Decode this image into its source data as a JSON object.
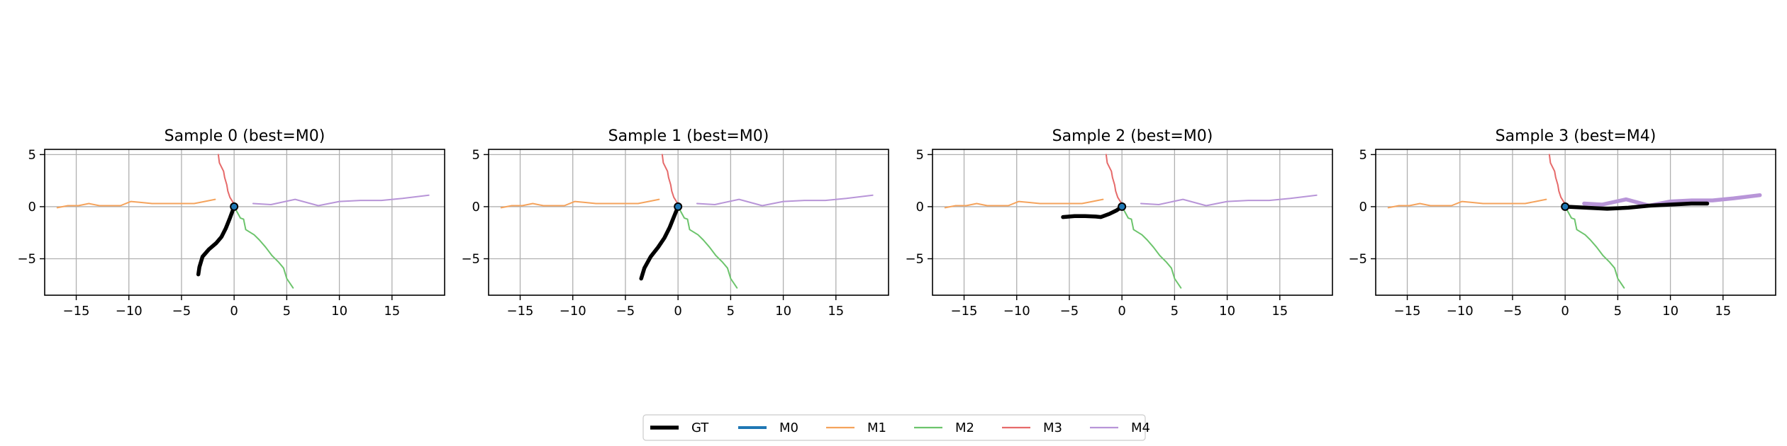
{
  "colors": {
    "GT": "#000000",
    "M0": "#1f77b4",
    "M1": "#f5a35c",
    "M2": "#6cc46c",
    "M3": "#e66a6a",
    "M4": "#b895d8",
    "grid": "#b0b0b0"
  },
  "legend": {
    "placement": "bottom-center",
    "entries": [
      "GT",
      "M0",
      "M1",
      "M2",
      "M3",
      "M4"
    ]
  },
  "chart_data": [
    {
      "type": "line",
      "title": "Sample 0 (best=M0)",
      "xlim": [
        -18,
        20
      ],
      "ylim": [
        -8.5,
        5.5
      ],
      "xticks": [
        -15,
        -10,
        -5,
        0,
        5,
        10,
        15
      ],
      "yticks": [
        5,
        0,
        -5
      ],
      "grid": true,
      "origin_marker": [
        0,
        0
      ],
      "series": [
        {
          "name": "GT",
          "points": [
            [
              -3.4,
              -6.5
            ],
            [
              -3.3,
              -5.8
            ],
            [
              -3.0,
              -4.8
            ],
            [
              -2.4,
              -4.1
            ],
            [
              -1.7,
              -3.5
            ],
            [
              -1.2,
              -2.9
            ],
            [
              -0.8,
              -2.1
            ],
            [
              -0.4,
              -1.1
            ],
            [
              0,
              0
            ]
          ]
        },
        {
          "name": "M0",
          "points": [
            [
              0,
              0
            ],
            [
              0.1,
              0.05
            ]
          ]
        },
        {
          "name": "M1",
          "points": [
            [
              -16.8,
              -0.1
            ],
            [
              -15.8,
              0.1
            ],
            [
              -14.8,
              0.1
            ],
            [
              -13.8,
              0.3
            ],
            [
              -12.8,
              0.1
            ],
            [
              -11.8,
              0.1
            ],
            [
              -10.8,
              0.1
            ],
            [
              -9.8,
              0.5
            ],
            [
              -8.8,
              0.4
            ],
            [
              -7.8,
              0.3
            ],
            [
              -6.8,
              0.3
            ],
            [
              -5.8,
              0.3
            ],
            [
              -4.8,
              0.3
            ],
            [
              -3.8,
              0.3
            ],
            [
              -2.8,
              0.5
            ],
            [
              -1.8,
              0.7
            ]
          ]
        },
        {
          "name": "M2",
          "points": [
            [
              0,
              0
            ],
            [
              0.6,
              -1.1
            ],
            [
              0.9,
              -1.2
            ],
            [
              1.1,
              -2.2
            ],
            [
              1.9,
              -2.7
            ],
            [
              2.4,
              -3.2
            ],
            [
              3.0,
              -3.9
            ],
            [
              3.6,
              -4.7
            ],
            [
              4.2,
              -5.3
            ],
            [
              4.7,
              -5.9
            ],
            [
              5.0,
              -6.9
            ],
            [
              5.6,
              -7.8
            ]
          ]
        },
        {
          "name": "M3",
          "points": [
            [
              -1.5,
              5.0
            ],
            [
              -1.4,
              4.2
            ],
            [
              -1.0,
              3.4
            ],
            [
              -0.9,
              2.8
            ],
            [
              -0.7,
              2.1
            ],
            [
              -0.6,
              1.5
            ],
            [
              -0.4,
              0.9
            ],
            [
              -0.1,
              0.4
            ],
            [
              0,
              0
            ]
          ]
        },
        {
          "name": "M4",
          "points": [
            [
              1.8,
              0.3
            ],
            [
              3.5,
              0.2
            ],
            [
              5.8,
              0.7
            ],
            [
              8.0,
              0.1
            ],
            [
              10.0,
              0.5
            ],
            [
              12.0,
              0.6
            ],
            [
              14.0,
              0.6
            ],
            [
              16.0,
              0.8
            ],
            [
              18.5,
              1.1
            ]
          ]
        }
      ]
    },
    {
      "type": "line",
      "title": "Sample 1 (best=M0)",
      "xlim": [
        -18,
        20
      ],
      "ylim": [
        -8.5,
        5.5
      ],
      "xticks": [
        -15,
        -10,
        -5,
        0,
        5,
        10,
        15
      ],
      "yticks": [
        5,
        0,
        -5
      ],
      "grid": true,
      "origin_marker": [
        0,
        0
      ],
      "series": [
        {
          "name": "GT",
          "points": [
            [
              -3.5,
              -6.9
            ],
            [
              -3.2,
              -5.9
            ],
            [
              -2.6,
              -4.8
            ],
            [
              -1.9,
              -3.9
            ],
            [
              -1.3,
              -3.0
            ],
            [
              -0.8,
              -2.0
            ],
            [
              -0.4,
              -1.0
            ],
            [
              0,
              0
            ]
          ]
        },
        {
          "name": "M0",
          "points": [
            [
              0,
              0
            ],
            [
              0.1,
              0.05
            ]
          ]
        },
        {
          "name": "M1",
          "points": [
            [
              -16.8,
              -0.1
            ],
            [
              -15.8,
              0.1
            ],
            [
              -14.8,
              0.1
            ],
            [
              -13.8,
              0.3
            ],
            [
              -12.8,
              0.1
            ],
            [
              -11.8,
              0.1
            ],
            [
              -10.8,
              0.1
            ],
            [
              -9.8,
              0.5
            ],
            [
              -8.8,
              0.4
            ],
            [
              -7.8,
              0.3
            ],
            [
              -6.8,
              0.3
            ],
            [
              -5.8,
              0.3
            ],
            [
              -4.8,
              0.3
            ],
            [
              -3.8,
              0.3
            ],
            [
              -2.8,
              0.5
            ],
            [
              -1.8,
              0.7
            ]
          ]
        },
        {
          "name": "M2",
          "points": [
            [
              0,
              0
            ],
            [
              0.6,
              -1.1
            ],
            [
              0.9,
              -1.2
            ],
            [
              1.1,
              -2.2
            ],
            [
              1.9,
              -2.7
            ],
            [
              2.4,
              -3.2
            ],
            [
              3.0,
              -3.9
            ],
            [
              3.6,
              -4.7
            ],
            [
              4.2,
              -5.3
            ],
            [
              4.7,
              -5.9
            ],
            [
              5.0,
              -6.9
            ],
            [
              5.6,
              -7.8
            ]
          ]
        },
        {
          "name": "M3",
          "points": [
            [
              -1.5,
              5.0
            ],
            [
              -1.4,
              4.2
            ],
            [
              -1.0,
              3.4
            ],
            [
              -0.9,
              2.8
            ],
            [
              -0.7,
              2.1
            ],
            [
              -0.6,
              1.5
            ],
            [
              -0.4,
              0.9
            ],
            [
              -0.1,
              0.4
            ],
            [
              0,
              0
            ]
          ]
        },
        {
          "name": "M4",
          "points": [
            [
              1.8,
              0.3
            ],
            [
              3.5,
              0.2
            ],
            [
              5.8,
              0.7
            ],
            [
              8.0,
              0.1
            ],
            [
              10.0,
              0.5
            ],
            [
              12.0,
              0.6
            ],
            [
              14.0,
              0.6
            ],
            [
              16.0,
              0.8
            ],
            [
              18.5,
              1.1
            ]
          ]
        }
      ]
    },
    {
      "type": "line",
      "title": "Sample 2 (best=M0)",
      "xlim": [
        -18,
        20
      ],
      "ylim": [
        -8.5,
        5.5
      ],
      "xticks": [
        -15,
        -10,
        -5,
        0,
        5,
        10,
        15
      ],
      "yticks": [
        5,
        0,
        -5
      ],
      "grid": true,
      "origin_marker": [
        0,
        0
      ],
      "series": [
        {
          "name": "GT",
          "points": [
            [
              -5.6,
              -1.0
            ],
            [
              -4.5,
              -0.9
            ],
            [
              -3.5,
              -0.9
            ],
            [
              -2.5,
              -0.95
            ],
            [
              -2.0,
              -1.0
            ],
            [
              -1.2,
              -0.7
            ],
            [
              -0.5,
              -0.35
            ],
            [
              0,
              0
            ]
          ]
        },
        {
          "name": "M0",
          "points": [
            [
              0,
              0
            ],
            [
              0.1,
              0.05
            ]
          ]
        },
        {
          "name": "M1",
          "points": [
            [
              -16.8,
              -0.1
            ],
            [
              -15.8,
              0.1
            ],
            [
              -14.8,
              0.1
            ],
            [
              -13.8,
              0.3
            ],
            [
              -12.8,
              0.1
            ],
            [
              -11.8,
              0.1
            ],
            [
              -10.8,
              0.1
            ],
            [
              -9.8,
              0.5
            ],
            [
              -8.8,
              0.4
            ],
            [
              -7.8,
              0.3
            ],
            [
              -6.8,
              0.3
            ],
            [
              -5.8,
              0.3
            ],
            [
              -4.8,
              0.3
            ],
            [
              -3.8,
              0.3
            ],
            [
              -2.8,
              0.5
            ],
            [
              -1.8,
              0.7
            ]
          ]
        },
        {
          "name": "M2",
          "points": [
            [
              0,
              0
            ],
            [
              0.6,
              -1.1
            ],
            [
              0.9,
              -1.2
            ],
            [
              1.1,
              -2.2
            ],
            [
              1.9,
              -2.7
            ],
            [
              2.4,
              -3.2
            ],
            [
              3.0,
              -3.9
            ],
            [
              3.6,
              -4.7
            ],
            [
              4.2,
              -5.3
            ],
            [
              4.7,
              -5.9
            ],
            [
              5.0,
              -6.9
            ],
            [
              5.6,
              -7.8
            ]
          ]
        },
        {
          "name": "M3",
          "points": [
            [
              -1.5,
              5.0
            ],
            [
              -1.4,
              4.2
            ],
            [
              -1.0,
              3.4
            ],
            [
              -0.9,
              2.8
            ],
            [
              -0.7,
              2.1
            ],
            [
              -0.6,
              1.5
            ],
            [
              -0.4,
              0.9
            ],
            [
              -0.1,
              0.4
            ],
            [
              0,
              0
            ]
          ]
        },
        {
          "name": "M4",
          "points": [
            [
              1.8,
              0.3
            ],
            [
              3.5,
              0.2
            ],
            [
              5.8,
              0.7
            ],
            [
              8.0,
              0.1
            ],
            [
              10.0,
              0.5
            ],
            [
              12.0,
              0.6
            ],
            [
              14.0,
              0.6
            ],
            [
              16.0,
              0.8
            ],
            [
              18.5,
              1.1
            ]
          ]
        }
      ]
    },
    {
      "type": "line",
      "title": "Sample 3 (best=M4)",
      "xlim": [
        -18,
        20
      ],
      "ylim": [
        -8.5,
        5.5
      ],
      "xticks": [
        -15,
        -10,
        -5,
        0,
        5,
        10,
        15
      ],
      "yticks": [
        5,
        0,
        -5
      ],
      "grid": true,
      "origin_marker": [
        0,
        0
      ],
      "highlight": "M4",
      "series": [
        {
          "name": "GT",
          "points": [
            [
              0,
              0
            ],
            [
              2,
              -0.1
            ],
            [
              4,
              -0.2
            ],
            [
              6,
              -0.1
            ],
            [
              8,
              0.1
            ],
            [
              10,
              0.2
            ],
            [
              12,
              0.3
            ],
            [
              13.5,
              0.3
            ]
          ]
        },
        {
          "name": "M0",
          "points": [
            [
              0,
              0
            ],
            [
              0.1,
              0.05
            ]
          ]
        },
        {
          "name": "M1",
          "points": [
            [
              -16.8,
              -0.1
            ],
            [
              -15.8,
              0.1
            ],
            [
              -14.8,
              0.1
            ],
            [
              -13.8,
              0.3
            ],
            [
              -12.8,
              0.1
            ],
            [
              -11.8,
              0.1
            ],
            [
              -10.8,
              0.1
            ],
            [
              -9.8,
              0.5
            ],
            [
              -8.8,
              0.4
            ],
            [
              -7.8,
              0.3
            ],
            [
              -6.8,
              0.3
            ],
            [
              -5.8,
              0.3
            ],
            [
              -4.8,
              0.3
            ],
            [
              -3.8,
              0.3
            ],
            [
              -2.8,
              0.5
            ],
            [
              -1.8,
              0.7
            ]
          ]
        },
        {
          "name": "M2",
          "points": [
            [
              0,
              0
            ],
            [
              0.6,
              -1.1
            ],
            [
              0.9,
              -1.2
            ],
            [
              1.1,
              -2.2
            ],
            [
              1.9,
              -2.7
            ],
            [
              2.4,
              -3.2
            ],
            [
              3.0,
              -3.9
            ],
            [
              3.6,
              -4.7
            ],
            [
              4.2,
              -5.3
            ],
            [
              4.7,
              -5.9
            ],
            [
              5.0,
              -6.9
            ],
            [
              5.6,
              -7.8
            ]
          ]
        },
        {
          "name": "M3",
          "points": [
            [
              -1.5,
              5.0
            ],
            [
              -1.4,
              4.2
            ],
            [
              -1.0,
              3.4
            ],
            [
              -0.9,
              2.8
            ],
            [
              -0.7,
              2.1
            ],
            [
              -0.6,
              1.5
            ],
            [
              -0.4,
              0.9
            ],
            [
              -0.1,
              0.4
            ],
            [
              0,
              0
            ]
          ]
        },
        {
          "name": "M4",
          "points": [
            [
              1.8,
              0.3
            ],
            [
              3.5,
              0.2
            ],
            [
              5.8,
              0.7
            ],
            [
              8.0,
              0.1
            ],
            [
              10.0,
              0.5
            ],
            [
              12.0,
              0.6
            ],
            [
              14.0,
              0.6
            ],
            [
              16.0,
              0.8
            ],
            [
              18.5,
              1.1
            ]
          ]
        }
      ]
    }
  ]
}
